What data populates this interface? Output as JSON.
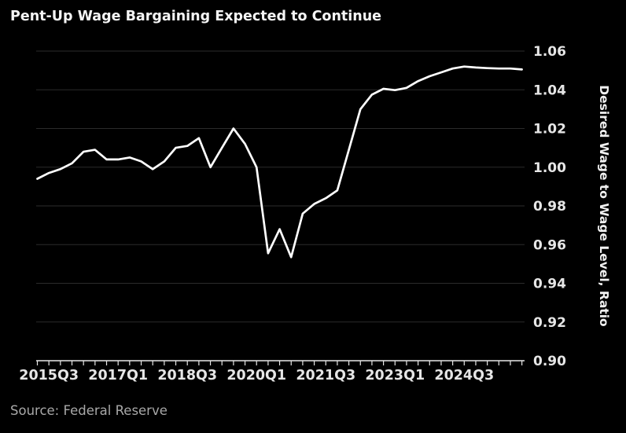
{
  "chart_data": {
    "type": "line",
    "title": "Pent-Up Wage Bargaining Expected to Continue",
    "source": "Source: Federal Reserve",
    "y_axis_label": "Desired Wage to Wage Level, Ratio",
    "ylim": [
      0.9,
      1.06
    ],
    "y_ticks": [
      1.06,
      1.04,
      1.02,
      1.0,
      0.98,
      0.96,
      0.94,
      0.92,
      0.9
    ],
    "x_tick_labels": [
      "2015Q3",
      "2017Q1",
      "2018Q3",
      "2020Q1",
      "2021Q3",
      "2023Q1",
      "2024Q3"
    ],
    "grid": true,
    "legend": "none",
    "categories": [
      "2015Q2",
      "2015Q3",
      "2015Q4",
      "2016Q1",
      "2016Q2",
      "2016Q3",
      "2016Q4",
      "2017Q1",
      "2017Q2",
      "2017Q3",
      "2017Q4",
      "2018Q1",
      "2018Q2",
      "2018Q3",
      "2018Q4",
      "2019Q1",
      "2019Q2",
      "2019Q3",
      "2019Q4",
      "2020Q1",
      "2020Q2",
      "2020Q3",
      "2020Q4",
      "2021Q1",
      "2021Q2",
      "2021Q3",
      "2021Q4",
      "2022Q1",
      "2022Q2",
      "2022Q3",
      "2022Q4",
      "2023Q1",
      "2023Q2",
      "2023Q3",
      "2023Q4",
      "2024Q1",
      "2024Q2",
      "2024Q3",
      "2024Q4",
      "2025Q1",
      "2025Q2",
      "2025Q3",
      "2025Q4"
    ],
    "series": [
      {
        "name": "Desired Wage to Wage Level, Ratio",
        "values": [
          0.994,
          0.997,
          0.999,
          1.002,
          1.008,
          1.009,
          1.004,
          1.004,
          1.005,
          1.003,
          0.999,
          1.003,
          1.01,
          1.011,
          1.015,
          1.0,
          1.01,
          1.02,
          1.012,
          1.0,
          0.9555,
          0.968,
          0.9535,
          0.976,
          0.981,
          0.984,
          0.988,
          1.009,
          1.03,
          1.0375,
          1.0405,
          1.0398,
          1.041,
          1.0445,
          1.047,
          1.049,
          1.051,
          1.052,
          1.0515,
          1.0512,
          1.051,
          1.051,
          1.0505
        ]
      }
    ],
    "colors": {
      "background": "#000000",
      "line": "#ffffff",
      "grid": "#2b2b2b",
      "axis": "#e8e8e8",
      "tick_label": "#e6e6e6",
      "axis_title": "#f0f0f0",
      "title": "#f5f5f5",
      "source": "#a8a8a8"
    }
  }
}
